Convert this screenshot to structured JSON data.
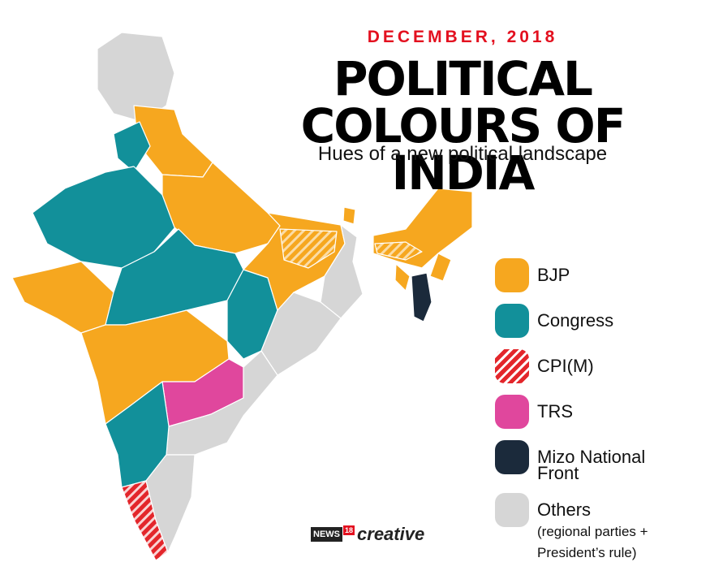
{
  "header": {
    "kicker": "DECEMBER, 2018",
    "title_lines": [
      "POLITICAL",
      "COLOURS OF INDIA"
    ],
    "subtitle": "Hues of a new political landscape"
  },
  "legend": [
    {
      "label": "BJP",
      "color": "#f6a71f"
    },
    {
      "label": "Congress",
      "color": "#12909a"
    },
    {
      "label": "CPI(M)",
      "color": "#e3262b",
      "hatched": true
    },
    {
      "label": "TRS",
      "color": "#e0479d"
    },
    {
      "label": "Mizo National Front",
      "color": "#1b2a3b"
    },
    {
      "label": "Others",
      "note": "(regional parties + President’s rule)",
      "color": "#d6d6d6"
    }
  ],
  "logo": {
    "brand": "NEWS",
    "badge": "18",
    "word": "creative"
  }
}
